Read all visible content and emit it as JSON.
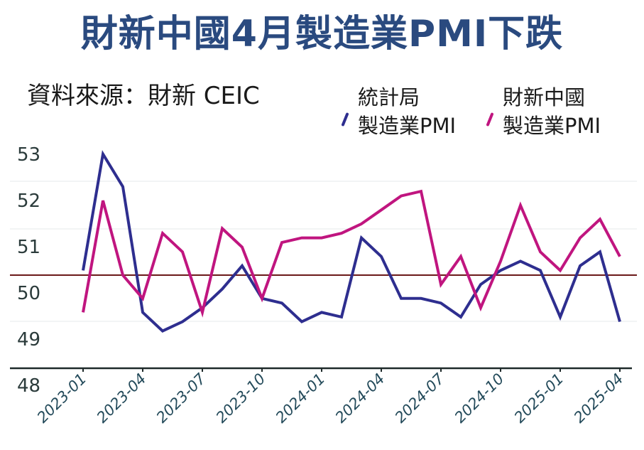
{
  "header": {
    "title": "財新中國4月製造業PMI下跌",
    "title_color": "#2a4a7f",
    "source": "資料來源：財新 CEIC"
  },
  "legend": [
    {
      "line1": "統計局",
      "line2": "製造業PMI",
      "color": "#2e2e8f"
    },
    {
      "line1": "財新中國",
      "line2": "製造業PMI",
      "color": "#c0157f"
    }
  ],
  "chart_data": {
    "type": "line",
    "title": "財新中國4月製造業PMI下跌",
    "subtitle": "資料來源：財新 CEIC",
    "xlabel": "",
    "ylabel": "",
    "ylim": [
      48,
      53
    ],
    "y_ticks": [
      53,
      52,
      51,
      50,
      49,
      48
    ],
    "x_tick_labels": [
      "2023-01",
      "2023-04",
      "2023-07",
      "2023-10",
      "2024-01",
      "2024-04",
      "2024-07",
      "2024-10",
      "2025-01",
      "2025-04"
    ],
    "reference_line": {
      "value": 50,
      "color": "#6b1a1a"
    },
    "grid": true,
    "legend_position": "top-right",
    "x": [
      "2023-01",
      "2023-02",
      "2023-03",
      "2023-04",
      "2023-05",
      "2023-06",
      "2023-07",
      "2023-08",
      "2023-09",
      "2023-10",
      "2023-11",
      "2023-12",
      "2024-01",
      "2024-02",
      "2024-03",
      "2024-04",
      "2024-05",
      "2024-06",
      "2024-07",
      "2024-08",
      "2024-09",
      "2024-10",
      "2024-11",
      "2024-12",
      "2025-01",
      "2025-02",
      "2025-03",
      "2025-04"
    ],
    "series": [
      {
        "name": "統計局製造業PMI",
        "color": "#2e2e8f",
        "values": [
          50.1,
          52.6,
          51.9,
          49.2,
          48.8,
          49.0,
          49.3,
          49.7,
          50.2,
          49.5,
          49.4,
          49.0,
          49.2,
          49.1,
          50.8,
          50.4,
          49.5,
          49.5,
          49.4,
          49.1,
          49.8,
          50.1,
          50.3,
          50.1,
          49.1,
          50.2,
          50.5,
          49.0
        ]
      },
      {
        "name": "財新中國製造業PMI",
        "color": "#c0157f",
        "values": [
          49.2,
          51.6,
          50.0,
          49.5,
          50.9,
          50.5,
          49.2,
          51.0,
          50.6,
          49.5,
          50.7,
          50.8,
          50.8,
          50.9,
          51.1,
          51.4,
          51.7,
          51.8,
          49.8,
          50.4,
          49.3,
          50.3,
          51.5,
          50.5,
          50.1,
          50.8,
          51.2,
          50.4
        ]
      }
    ]
  }
}
